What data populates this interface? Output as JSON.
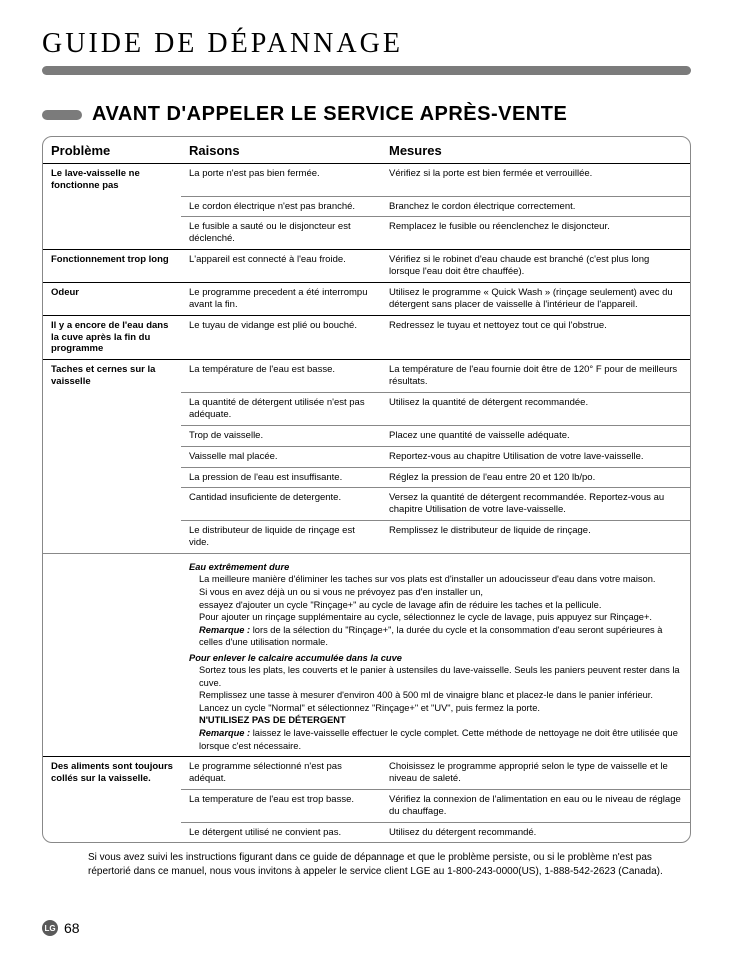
{
  "page": {
    "title": "GUIDE DE DÉPANNAGE",
    "section_heading": "AVANT D'APPELER LE SERVICE APRÈS-VENTE",
    "page_number": "68",
    "logo_text": "LG"
  },
  "columns": {
    "c1": "Problème",
    "c2": "Raisons",
    "c3": "Mesures"
  },
  "rows": [
    {
      "prob": "Le lave-vaisselle ne fonctionne pas",
      "raison": "La porte n'est pas bien fermée.",
      "mesure": "Vérifiez si la porte est bien fermée et verrouillée."
    },
    {
      "prob": "",
      "raison": "Le cordon électrique n'est pas branché.",
      "mesure": "Branchez le cordon électrique correctement."
    },
    {
      "prob": "",
      "raison": "Le fusible a sauté ou le disjoncteur est déclenché.",
      "mesure": "Remplacez le fusible ou réenclenchez le disjoncteur.",
      "dark": true
    },
    {
      "prob": "Fonctionnement trop long",
      "raison": "L'appareil est connecté à l'eau froide.",
      "mesure": "Vérifiez si le robinet d'eau chaude est branché (c'est plus long lorsque l'eau doit être chauffée).",
      "dark": true
    },
    {
      "prob": "Odeur",
      "raison": "Le programme precedent a été interrompu avant la fin.",
      "mesure": "Utilisez le programme « Quick Wash » (rinçage seulement) avec du détergent sans placer de vaisselle à l'intérieur de l'appareil.",
      "dark": true
    },
    {
      "prob": "Il y a encore de l'eau dans la cuve après la fin du programme",
      "raison": "Le tuyau de vidange est plié ou bouché.",
      "mesure": "Redressez le tuyau et nettoyez tout ce qui l'obstrue.",
      "dark": true
    },
    {
      "prob": "Taches et cernes sur la vaisselle",
      "raison": "La température de l'eau est basse.",
      "mesure": "La température de l'eau fournie doit être de 120° F pour de meilleurs résultats."
    },
    {
      "prob": "",
      "raison": "La quantité de détergent utilisée n'est pas adéquate.",
      "mesure": "Utilisez la quantité de détergent recommandée."
    },
    {
      "prob": "",
      "raison": "Trop de vaisselle.",
      "mesure": "Placez une quantité de vaisselle adéquate."
    },
    {
      "prob": "",
      "raison": "Vaisselle mal placée.",
      "mesure": "Reportez-vous au chapitre Utilisation de votre lave-vaisselle."
    },
    {
      "prob": "",
      "raison": "La pression de l'eau est insuffisante.",
      "mesure": "Réglez la pression de l'eau entre 20 et 120 lb/po."
    },
    {
      "prob": "",
      "raison": "Cantidad insuficiente de detergente.",
      "mesure": "Versez la quantité de détergent recommandée. Reportez-vous au chapitre Utilisation de votre lave-vaisselle."
    },
    {
      "prob": "",
      "raison": "Le distributeur de liquide de rinçage est vide.",
      "mesure": "Remplissez le distributeur de liquide de rinçage."
    }
  ],
  "notes": {
    "t1": "Eau extrêmement dure",
    "l1": "La meilleure manière d'éliminer les taches sur vos plats est d'installer un adoucisseur d'eau dans votre maison.",
    "l2": "Si vous en avez déjà un ou si vous ne prévoyez pas d'en installer un,",
    "l3": "essayez d'ajouter un cycle \"Rinçage+\" au cycle de lavage afin de réduire les taches et la pellicule.",
    "l4": "Pour ajouter un rinçage supplémentaire au cycle, sélectionnez le cycle de lavage, puis appuyez sur Rinçage+.",
    "r1_label": "Remarque :",
    "r1_text": " lors de la sélection du \"Rinçage+\", la durée du cycle et la consommation d'eau seront supérieures à celles d'une utilisation normale.",
    "t2": "Pour enlever le calcaire accumulée dans la cuve",
    "l5": "Sortez tous les plats, les couverts et le panier à ustensiles du lave-vaisselle. Seuls les paniers peuvent rester dans la cuve.",
    "l6": "Remplissez une tasse à mesurer d'environ 400 à 500 ml de vinaigre blanc et placez-le dans le panier inférieur.",
    "l7": "Lancez un cycle \"Normal\" et sélectionnez \"Rinçage+\" et \"UV\", puis fermez la porte.",
    "l8": "N'UTILISEZ PAS DE DÉTERGENT",
    "r2_label": "Remarque :",
    "r2_text": " laissez le lave-vaisselle effectuer le cycle complet. Cette méthode de nettoyage ne doit être utilisée que lorsque c'est nécessaire."
  },
  "rows2": [
    {
      "prob": "Des aliments sont toujours collés sur la vaisselle.",
      "raison": "Le programme sélectionné n'est pas adéquat.",
      "mesure": "Choisissez le programme approprié selon le type de vaisselle et le niveau de saleté."
    },
    {
      "prob": "",
      "raison": "La temperature de l'eau est trop basse.",
      "mesure": "Vérifiez la connexion de l'alimentation en eau ou le niveau de réglage du chauffage."
    },
    {
      "prob": "",
      "raison": "Le détergent utilisé ne convient pas.",
      "mesure": "Utilisez du détergent recommandé.",
      "last": true
    }
  ],
  "footer": "Si vous avez suivi les instructions figurant dans ce guide de dépannage et que le problème persiste, ou si le problème n'est pas répertorié dans ce manuel, nous vous invitons à appeler le service client LGE au 1-800-243-0000(US), 1-888-542-2623 (Canada)."
}
